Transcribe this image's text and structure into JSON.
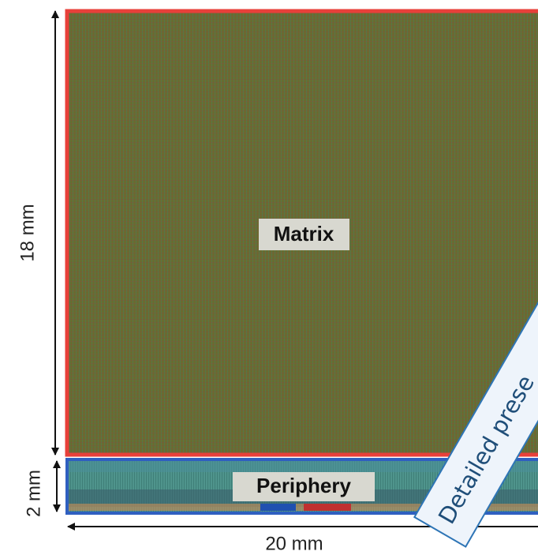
{
  "diagram": {
    "dimensions": {
      "matrix_height": "18 mm",
      "periphery_height": "2 mm",
      "width": "20 mm"
    },
    "blocks": {
      "matrix": "Matrix",
      "periphery": "Periphery"
    },
    "callout": "Detailed prese"
  }
}
